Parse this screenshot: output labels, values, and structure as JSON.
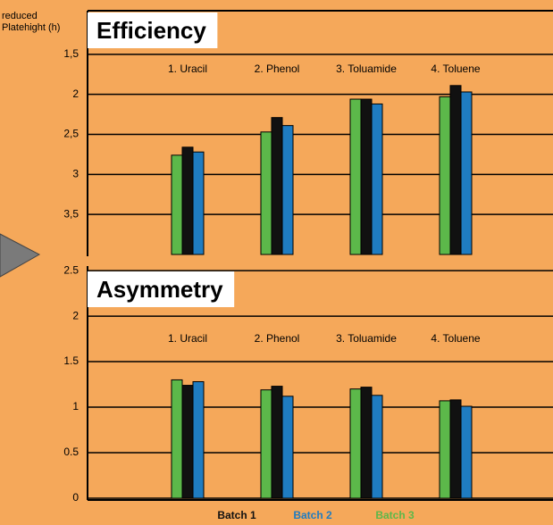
{
  "chart_data": [
    {
      "type": "bar",
      "title": "Efficiency",
      "y_label": "reduced Platehight (h)",
      "categories": [
        "1. Uracil",
        "2. Phenol",
        "3. Toluamide",
        "4. Toluene"
      ],
      "series": [
        {
          "color": "#111111",
          "values": [
            2.66,
            2.29,
            2.06,
            1.89
          ]
        },
        {
          "color": "#1f7cc1",
          "values": [
            2.72,
            2.39,
            2.12,
            1.97
          ]
        },
        {
          "color": "#5cb84a",
          "values": [
            2.76,
            2.47,
            2.06,
            2.03
          ]
        }
      ],
      "ylim": [
        4,
        1
      ],
      "yticks": [
        {
          "value": 1.5,
          "label": "1,5"
        },
        2,
        {
          "value": 2.5,
          "label": "2,5"
        },
        3,
        {
          "value": 3.5,
          "label": "3,5"
        }
      ],
      "grid": true
    },
    {
      "type": "bar",
      "title": "Asymmetry",
      "categories": [
        "1. Uracil",
        "2. Phenol",
        "3. Toluamide",
        "4. Toluene"
      ],
      "series": [
        {
          "name": "Batch 1",
          "color": "#111111",
          "values": [
            1.24,
            1.23,
            1.22,
            1.08
          ]
        },
        {
          "name": "Batch 2",
          "color": "#1f7cc1",
          "values": [
            1.28,
            1.12,
            1.13,
            1.01
          ]
        },
        {
          "name": "Batch 3",
          "color": "#5cb84a",
          "values": [
            1.3,
            1.19,
            1.2,
            1.07
          ]
        }
      ],
      "ylim": [
        0,
        2.55
      ],
      "yticks": [
        0,
        0.5,
        1,
        1.5,
        2,
        2.5
      ],
      "grid": true
    }
  ]
}
